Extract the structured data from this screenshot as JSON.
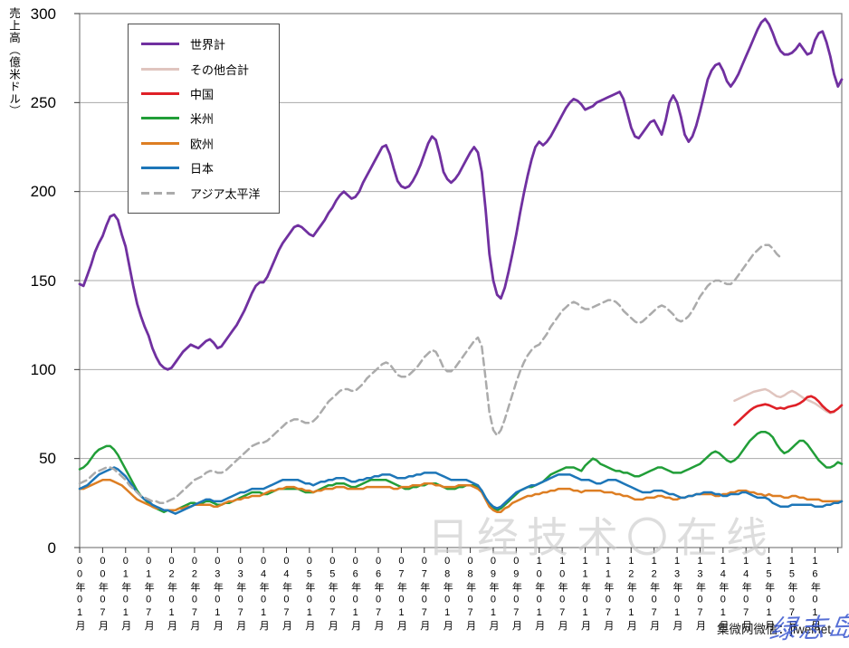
{
  "y_axis": {
    "title": "売上高（億米ドル）",
    "ticks": [
      300,
      250,
      200,
      150,
      100,
      50,
      0
    ],
    "min": 0,
    "max": 300
  },
  "x_axis": {
    "tick_interval_months": 6,
    "tick_labels": [
      "00年01月",
      "00年07月",
      "01年01月",
      "01年07月",
      "02年01月",
      "02年07月",
      "03年01月",
      "03年07月",
      "04年01月",
      "04年07月",
      "05年01月",
      "05年07月",
      "06年01月",
      "06年07月",
      "07年01月",
      "07年07月",
      "08年01月",
      "08年07月",
      "09年01月",
      "09年07月",
      "10年01月",
      "10年07月",
      "11年01月",
      "11年07月",
      "12年01月",
      "12年07月",
      "13年01月",
      "13年07月",
      "14年01月",
      "14年07月",
      "15年01月",
      "15年07月",
      "16年01月"
    ]
  },
  "legend": {
    "items": [
      {
        "id": "world_total",
        "label": "世界計",
        "color": "#7030A0",
        "dashed": false
      },
      {
        "id": "others_total",
        "label": "その他合計",
        "color": "#E0C5BF",
        "dashed": false
      },
      {
        "id": "china",
        "label": "中国",
        "color": "#DF2027",
        "dashed": false
      },
      {
        "id": "americas",
        "label": "米州",
        "color": "#219E38",
        "dashed": false
      },
      {
        "id": "europe",
        "label": "欧州",
        "color": "#DD7E23",
        "dashed": false
      },
      {
        "id": "japan",
        "label": "日本",
        "color": "#1D76B8",
        "dashed": false
      },
      {
        "id": "asia_pacific",
        "label": "アジア太平洋",
        "color": "#ABABAB",
        "dashed": true
      }
    ]
  },
  "watermarks": {
    "center": "日经技术〇在线",
    "credit": "集微网微信：jiweinet",
    "stamp": "绿志岛"
  },
  "style": {
    "grid_color": "#A9A9A9",
    "frame_color": "#7F7F7F",
    "tick_color": "#333333"
  },
  "chart_data": {
    "type": "line",
    "title": "",
    "xlabel": "",
    "ylabel": "売上高（億米ドル）",
    "ylim": [
      0,
      300
    ],
    "grid": true,
    "legend_position": "upper-left-inside",
    "x_unit": "month",
    "start_month": "2000-01",
    "end_month": "2016-08",
    "n_months": 200,
    "series": [
      {
        "id": "world_total",
        "name": "世界計",
        "color": "#7030A0",
        "dashed": false,
        "width": 2.8,
        "start_index": 0,
        "values": [
          148,
          147,
          153,
          159,
          166,
          171,
          175,
          181,
          186,
          187,
          184,
          176,
          169,
          158,
          147,
          137,
          130,
          124,
          119,
          112,
          107,
          103,
          101,
          100,
          101,
          104,
          107,
          110,
          112,
          114,
          113,
          112,
          114,
          116,
          117,
          115,
          112,
          113,
          116,
          119,
          122,
          125,
          129,
          133,
          138,
          143,
          147,
          149,
          149,
          152,
          157,
          162,
          167,
          171,
          174,
          177,
          180,
          181,
          180,
          178,
          176,
          175,
          178,
          181,
          184,
          188,
          191,
          195,
          198,
          200,
          198,
          196,
          197,
          200,
          205,
          209,
          213,
          217,
          221,
          225,
          226,
          221,
          213,
          206,
          203,
          202,
          203,
          206,
          210,
          215,
          221,
          227,
          231,
          229,
          221,
          211,
          207,
          205,
          207,
          210,
          214,
          218,
          222,
          225,
          222,
          211,
          190,
          165,
          150,
          142,
          140,
          146,
          155,
          165,
          176,
          188,
          199,
          209,
          218,
          225,
          228,
          226,
          228,
          231,
          235,
          239,
          243,
          247,
          250,
          252,
          251,
          249,
          246,
          247,
          248,
          250,
          251,
          252,
          253,
          254,
          255,
          256,
          252,
          244,
          236,
          231,
          230,
          233,
          236,
          239,
          240,
          236,
          232,
          240,
          250,
          254,
          250,
          242,
          232,
          228,
          231,
          237,
          245,
          254,
          263,
          268,
          271,
          272,
          268,
          262,
          259,
          262,
          266,
          271,
          276,
          281,
          286,
          291,
          295,
          297,
          294,
          289,
          283,
          279,
          277,
          277,
          278,
          280,
          283,
          280,
          277,
          278,
          285,
          289,
          290,
          284,
          276,
          266,
          259,
          263
        ]
      },
      {
        "id": "others_total",
        "name": "その他合計",
        "color": "#E0C5BF",
        "dashed": false,
        "width": 2.5,
        "start_index": 171,
        "values": [
          82.5,
          83.5,
          84.5,
          85.5,
          86.5,
          87.5,
          88,
          88.5,
          89,
          88,
          86.5,
          85,
          84.5,
          85.5,
          87,
          88,
          87,
          85.5,
          84,
          83,
          82,
          81,
          79.5,
          78,
          76.5,
          75.5,
          76,
          null,
          null
        ]
      },
      {
        "id": "china",
        "name": "中国",
        "color": "#DF2027",
        "dashed": false,
        "width": 2.6,
        "start_index": 171,
        "values": [
          69,
          71,
          73,
          75,
          77,
          78.5,
          79.5,
          80,
          80.5,
          80,
          79,
          78,
          78.5,
          78,
          79,
          79.5,
          80,
          81,
          82.5,
          84.5,
          85,
          84,
          82,
          79.5,
          77.5,
          76,
          76.5,
          78,
          80
        ]
      },
      {
        "id": "americas",
        "name": "米州",
        "color": "#219E38",
        "dashed": false,
        "width": 2.5,
        "start_index": 0,
        "values": [
          44,
          45,
          47,
          50,
          53,
          55,
          56,
          57,
          57,
          55,
          52,
          48,
          44,
          40,
          36,
          32,
          29,
          27,
          25,
          23,
          22,
          21,
          20,
          21,
          21,
          21,
          22,
          23,
          24,
          25,
          25,
          24,
          25,
          26,
          26,
          25,
          24,
          24,
          25,
          25,
          26,
          27,
          28,
          29,
          30,
          31,
          31,
          31,
          30,
          30,
          31,
          32,
          33,
          33,
          33,
          33,
          33,
          33,
          32,
          31,
          31,
          31,
          32,
          33,
          34,
          35,
          35,
          36,
          36,
          36,
          35,
          34,
          34,
          35,
          36,
          37,
          38,
          38,
          38,
          38,
          38,
          37,
          36,
          35,
          34,
          33,
          33,
          34,
          34,
          35,
          35,
          36,
          36,
          36,
          35,
          34,
          33,
          33,
          33,
          34,
          34,
          35,
          35,
          35,
          34,
          32,
          28,
          24,
          22,
          21,
          22,
          24,
          26,
          28,
          30,
          32,
          33,
          34,
          34,
          35,
          36,
          37,
          39,
          41,
          42,
          43,
          44,
          45,
          45,
          45,
          44,
          43,
          46,
          48,
          50,
          49,
          47,
          46,
          45,
          44,
          43,
          43,
          42,
          42,
          41,
          40,
          40,
          41,
          42,
          43,
          44,
          45,
          45,
          44,
          43,
          42,
          42,
          42,
          43,
          44,
          45,
          46,
          47,
          49,
          51,
          53,
          54,
          53,
          51,
          49,
          48,
          49,
          51,
          54,
          57,
          60,
          62,
          64,
          65,
          65,
          64,
          62,
          58,
          55,
          53,
          54,
          56,
          58,
          60,
          60,
          58,
          55,
          52,
          49,
          47,
          45,
          45,
          46,
          48,
          47
        ]
      },
      {
        "id": "europe",
        "name": "欧州",
        "color": "#DD7E23",
        "dashed": false,
        "width": 2.5,
        "start_index": 0,
        "values": [
          33,
          33,
          34,
          35,
          36,
          37,
          38,
          38,
          38,
          37,
          36,
          35,
          33,
          31,
          29,
          27,
          26,
          25,
          24,
          23,
          22,
          22,
          21,
          21,
          21,
          21,
          22,
          22,
          23,
          23,
          24,
          24,
          24,
          24,
          24,
          23,
          23,
          24,
          25,
          26,
          26,
          27,
          27,
          28,
          28,
          29,
          29,
          29,
          30,
          31,
          32,
          32,
          33,
          33,
          34,
          34,
          34,
          33,
          33,
          32,
          32,
          31,
          32,
          32,
          33,
          33,
          33,
          34,
          34,
          34,
          33,
          33,
          33,
          33,
          33,
          34,
          34,
          34,
          34,
          34,
          34,
          34,
          33,
          33,
          34,
          34,
          34,
          35,
          35,
          35,
          36,
          36,
          36,
          35,
          35,
          34,
          34,
          34,
          34,
          35,
          35,
          35,
          35,
          34,
          33,
          31,
          27,
          23,
          21,
          20,
          20,
          22,
          23,
          25,
          26,
          27,
          28,
          29,
          29,
          30,
          30,
          31,
          31,
          32,
          32,
          33,
          33,
          33,
          33,
          32,
          32,
          31,
          32,
          32,
          32,
          32,
          32,
          31,
          31,
          31,
          30,
          30,
          29,
          29,
          28,
          27,
          27,
          27,
          28,
          28,
          28,
          29,
          29,
          28,
          28,
          27,
          27,
          28,
          28,
          29,
          29,
          30,
          30,
          30,
          30,
          30,
          29,
          29,
          30,
          30,
          31,
          31,
          32,
          32,
          32,
          31,
          31,
          30,
          30,
          29,
          30,
          29,
          29,
          29,
          28,
          28,
          29,
          29,
          28,
          28,
          27,
          27,
          27,
          27,
          26,
          26,
          26,
          26,
          26,
          26
        ]
      },
      {
        "id": "japan",
        "name": "日本",
        "color": "#1D76B8",
        "dashed": false,
        "width": 2.5,
        "start_index": 0,
        "values": [
          33,
          34,
          35,
          37,
          39,
          41,
          42,
          43,
          44,
          45,
          44,
          42,
          40,
          37,
          34,
          31,
          29,
          27,
          26,
          24,
          23,
          22,
          21,
          21,
          20,
          19,
          20,
          21,
          22,
          23,
          24,
          25,
          26,
          27,
          27,
          26,
          26,
          26,
          27,
          28,
          29,
          30,
          31,
          31,
          32,
          33,
          33,
          33,
          33,
          34,
          35,
          36,
          37,
          38,
          38,
          38,
          38,
          38,
          37,
          36,
          36,
          35,
          36,
          37,
          37,
          38,
          38,
          39,
          39,
          39,
          38,
          37,
          37,
          38,
          38,
          39,
          39,
          40,
          40,
          41,
          41,
          41,
          40,
          39,
          39,
          39,
          40,
          40,
          41,
          41,
          42,
          42,
          42,
          42,
          41,
          40,
          39,
          38,
          38,
          38,
          38,
          38,
          37,
          36,
          35,
          32,
          28,
          25,
          23,
          22,
          23,
          25,
          27,
          29,
          31,
          32,
          33,
          34,
          35,
          35,
          36,
          37,
          38,
          39,
          40,
          41,
          41,
          41,
          41,
          40,
          39,
          38,
          38,
          38,
          37,
          36,
          36,
          37,
          38,
          38,
          38,
          37,
          36,
          35,
          34,
          33,
          32,
          31,
          31,
          31,
          32,
          32,
          32,
          31,
          30,
          30,
          29,
          28,
          28,
          29,
          29,
          30,
          30,
          31,
          31,
          31,
          30,
          30,
          29,
          29,
          30,
          30,
          30,
          31,
          31,
          30,
          29,
          28,
          28,
          28,
          27,
          25,
          24,
          23,
          23,
          23,
          24,
          24,
          24,
          24,
          24,
          24,
          23,
          23,
          23,
          24,
          24,
          25,
          25,
          26
        ]
      },
      {
        "id": "asia_pacific",
        "name": "アジア太平洋",
        "color": "#ABABAB",
        "dashed": true,
        "width": 2.5,
        "start_index": 0,
        "values": [
          36,
          37,
          38,
          40,
          42,
          43,
          44,
          45,
          45,
          44,
          42,
          40,
          38,
          35,
          33,
          31,
          29,
          28,
          27,
          26,
          26,
          25,
          25,
          26,
          27,
          28,
          30,
          32,
          34,
          36,
          38,
          39,
          40,
          42,
          43,
          43,
          42,
          42,
          43,
          45,
          47,
          49,
          51,
          53,
          55,
          57,
          58,
          59,
          59,
          60,
          62,
          64,
          66,
          68,
          70,
          71,
          72,
          72,
          71,
          70,
          70,
          71,
          73,
          76,
          79,
          82,
          84,
          86,
          88,
          89,
          89,
          88,
          88,
          90,
          92,
          95,
          97,
          99,
          101,
          103,
          104,
          103,
          100,
          97,
          96,
          96,
          97,
          99,
          101,
          104,
          107,
          109,
          111,
          110,
          106,
          101,
          99,
          99,
          101,
          104,
          107,
          110,
          113,
          116,
          118,
          113,
          95,
          76,
          66,
          63,
          66,
          72,
          79,
          86,
          93,
          99,
          104,
          108,
          111,
          113,
          114,
          117,
          120,
          124,
          127,
          130,
          133,
          135,
          137,
          138,
          137,
          135,
          134,
          134,
          135,
          136,
          137,
          138,
          139,
          139,
          138,
          136,
          133,
          131,
          129,
          127,
          126,
          127,
          129,
          131,
          133,
          135,
          136,
          135,
          133,
          131,
          128,
          127,
          128,
          130,
          133,
          137,
          141,
          144,
          147,
          149,
          150,
          150,
          149,
          148,
          148,
          150,
          153,
          156,
          159,
          162,
          165,
          167,
          169,
          170,
          170,
          168,
          165,
          163
        ]
      }
    ]
  }
}
